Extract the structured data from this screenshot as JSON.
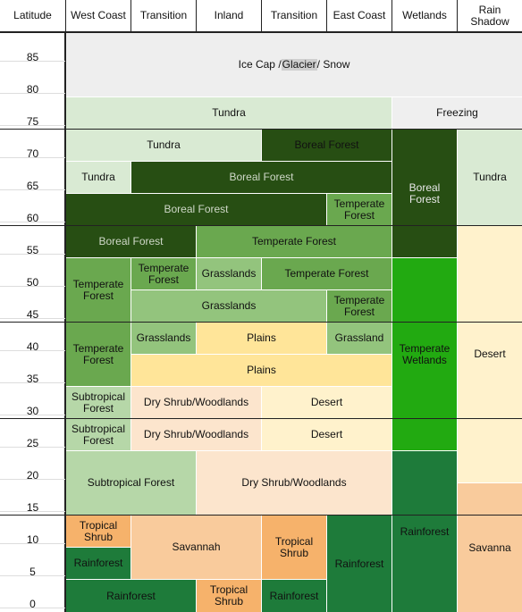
{
  "colors": {
    "ice": "#eeeeee",
    "tundra": "#d9ead3",
    "boreal": "#274e13",
    "temperate_forest": "#6aa84f",
    "grasslands": "#93c47d",
    "plains": "#ffe599",
    "desert": "#fff2cc",
    "dry_shrub": "#fce5cd",
    "subtropical": "#b6d7a8",
    "tropical_shrub": "#f6b26b",
    "savannah": "#f9cb9c",
    "rainforest": "#1e7b3a",
    "wetlands": "#22aa11",
    "freezing": "#efefef"
  },
  "headers": [
    {
      "label": "Latitude"
    },
    {
      "label": "West Coast"
    },
    {
      "label": "Transition"
    },
    {
      "label": "Inland"
    },
    {
      "label": "Transition"
    },
    {
      "label": "East Coast"
    },
    {
      "label": "Wetlands"
    },
    {
      "label": "Rain\nShadow"
    }
  ],
  "latitude_ticks": [
    "85",
    "80",
    "75",
    "70",
    "65",
    "60",
    "55",
    "50",
    "45",
    "40",
    "35",
    "30",
    "25",
    "20",
    "15",
    "10",
    "5",
    "0"
  ],
  "cells": {
    "ice_cap_a": "Ice Cap / ",
    "ice_cap_b": "Glacier",
    "ice_cap_c": " / Snow",
    "tundra_top": "Tundra",
    "freezing": "Freezing",
    "tundra_70": "Tundra",
    "boreal_70": "Boreal Forest",
    "boreal_wetlands": "Boreal\nForest",
    "tundra_rainshadow": "Tundra",
    "tundra_65": "Tundra",
    "boreal_65": "Boreal Forest",
    "boreal_60": "Boreal Forest",
    "temperate_60_ec": "Temperate\nForest",
    "boreal_55": "Boreal Forest",
    "temperate_55": "Temperate Forest",
    "temperate_50_wc": "Temperate\nForest",
    "temperate_50_tr": "Temperate\nForest",
    "grasslands_50": "Grasslands",
    "temperate_50_right": "Temperate Forest",
    "grasslands_45": "Grasslands",
    "temperate_45_ec": "Temperate\nForest",
    "temperate_wetlands": "Temperate\nWetlands",
    "desert_rainshadow": "Desert",
    "temperate_40_wc": "Temperate\nForest",
    "grasslands_40": "Grasslands",
    "plains_40": "Plains",
    "grassland_40_ec": "Grassland",
    "plains_35": "Plains",
    "subtropical_30": "Subtropical\nForest",
    "dry_shrub_30": "Dry Shrub/Woodlands",
    "desert_30": "Desert",
    "subtropical_25": "Subtropical\nForest",
    "dry_shrub_25": "Dry Shrub/Woodlands",
    "desert_25": "Desert",
    "subtropical_20": "Subtropical Forest",
    "dry_shrub_20": "Dry Shrub/Woodlands",
    "tropical_shrub_10_wc": "Tropical\nShrub",
    "savannah_10": "Savannah",
    "tropical_shrub_10_tr": "Tropical\nShrub",
    "rainforest_10_ec": "Rainforest",
    "rainforest_wetlands": "Rainforest",
    "savanna_rainshadow": "Savanna",
    "rainforest_5_wc": "Rainforest",
    "rainforest_0": "Rainforest",
    "tropical_shrub_0": "Tropical\nShrub",
    "rainforest_0_tr": "Rainforest"
  }
}
